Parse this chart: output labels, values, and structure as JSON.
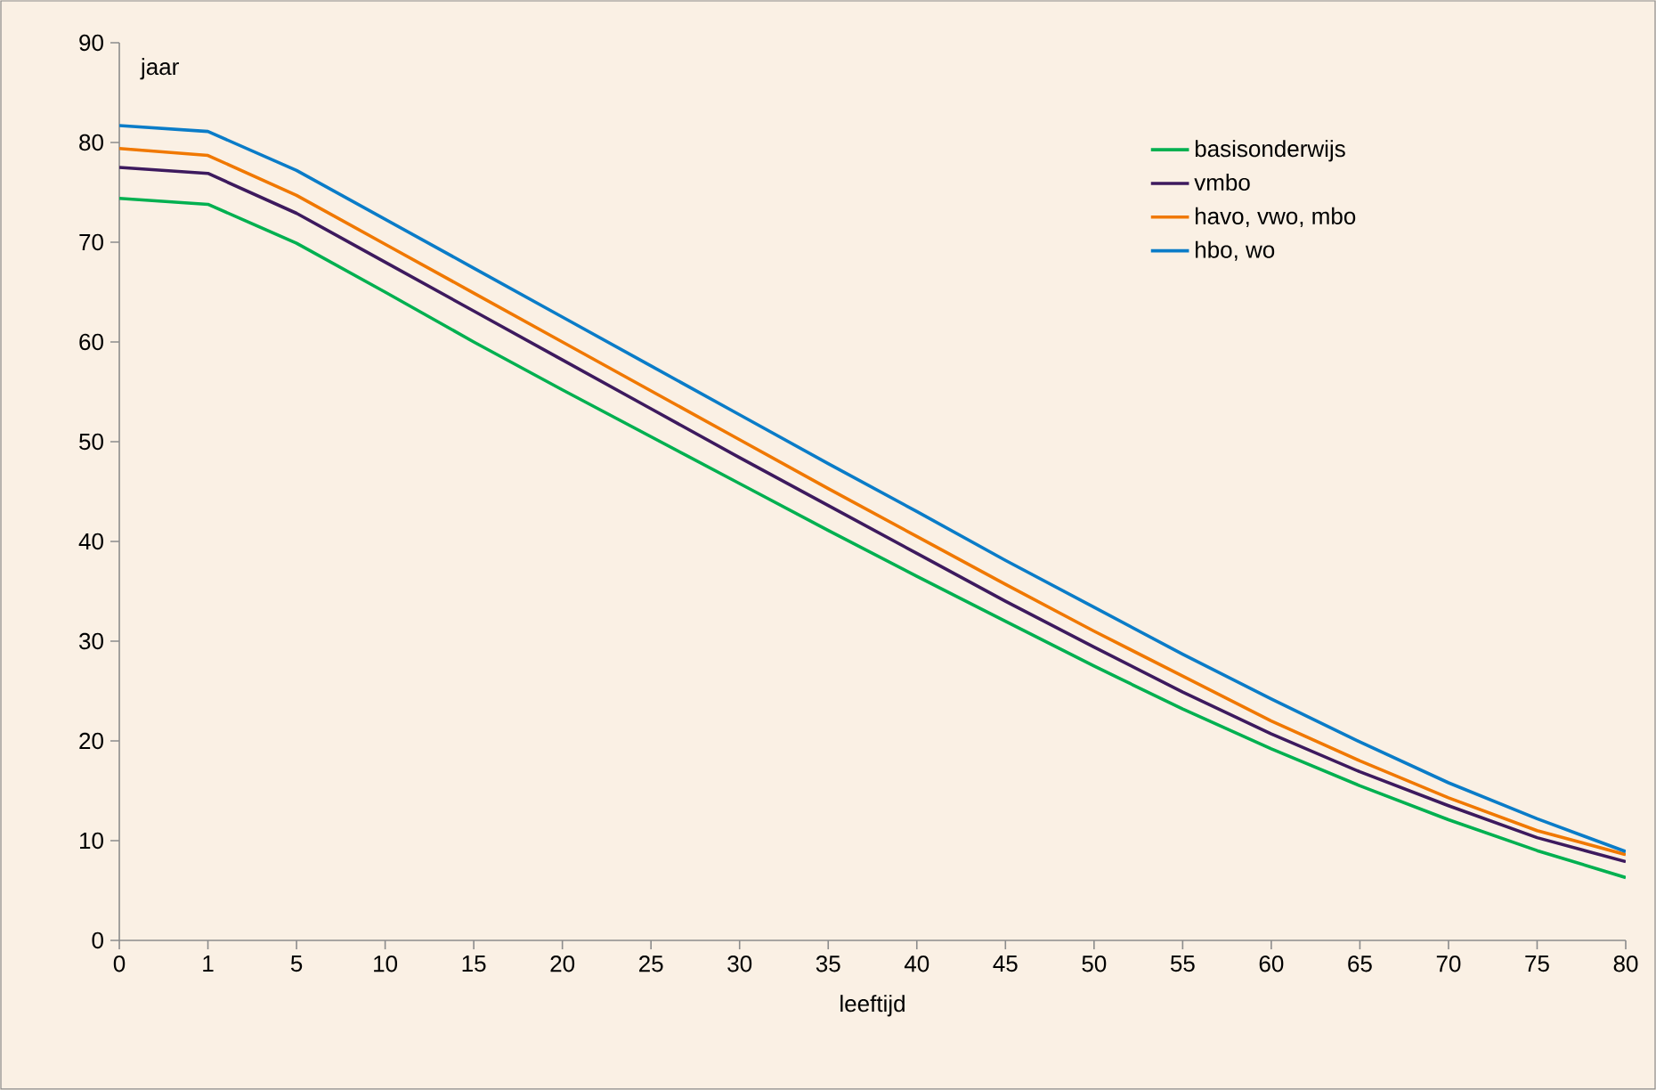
{
  "chart_data": {
    "type": "line",
    "xlabel": "leeftijd",
    "ylabel": "jaar",
    "categories": [
      "0",
      "1",
      "5",
      "10",
      "15",
      "20",
      "25",
      "30",
      "35",
      "40",
      "45",
      "50",
      "55",
      "60",
      "65",
      "70",
      "75",
      "80"
    ],
    "ylim": [
      0,
      90
    ],
    "yticks": [
      0,
      10,
      20,
      30,
      40,
      50,
      60,
      70,
      80,
      90
    ],
    "grid": false,
    "legend": "top right",
    "marker": "none",
    "line_style": "solid",
    "series": [
      {
        "name": "basisonderwijs",
        "color": "#00b050",
        "values": [
          74.4,
          73.8,
          69.9,
          65.0,
          60.0,
          55.2,
          50.5,
          45.8,
          41.1,
          36.5,
          32.0,
          27.5,
          23.2,
          19.2,
          15.5,
          12.1,
          9.0,
          6.3
        ]
      },
      {
        "name": "vmbo",
        "color": "#3d1a5e",
        "values": [
          77.5,
          76.9,
          72.9,
          68.0,
          63.1,
          58.2,
          53.3,
          48.4,
          43.6,
          38.8,
          34.0,
          29.4,
          24.9,
          20.7,
          16.9,
          13.5,
          10.3,
          7.9
        ]
      },
      {
        "name": "havo, vwo, mbo",
        "color": "#f07800",
        "values": [
          79.4,
          78.7,
          74.7,
          69.8,
          64.9,
          60.0,
          55.1,
          50.2,
          45.3,
          40.5,
          35.7,
          31.0,
          26.5,
          22.0,
          18.0,
          14.3,
          11.0,
          8.6
        ]
      },
      {
        "name": "hbo, wo",
        "color": "#0a7cc8",
        "values": [
          81.7,
          81.1,
          77.2,
          72.3,
          67.4,
          62.5,
          57.6,
          52.7,
          47.8,
          43.0,
          38.1,
          33.4,
          28.7,
          24.2,
          19.9,
          15.8,
          12.2,
          8.9
        ]
      }
    ]
  }
}
